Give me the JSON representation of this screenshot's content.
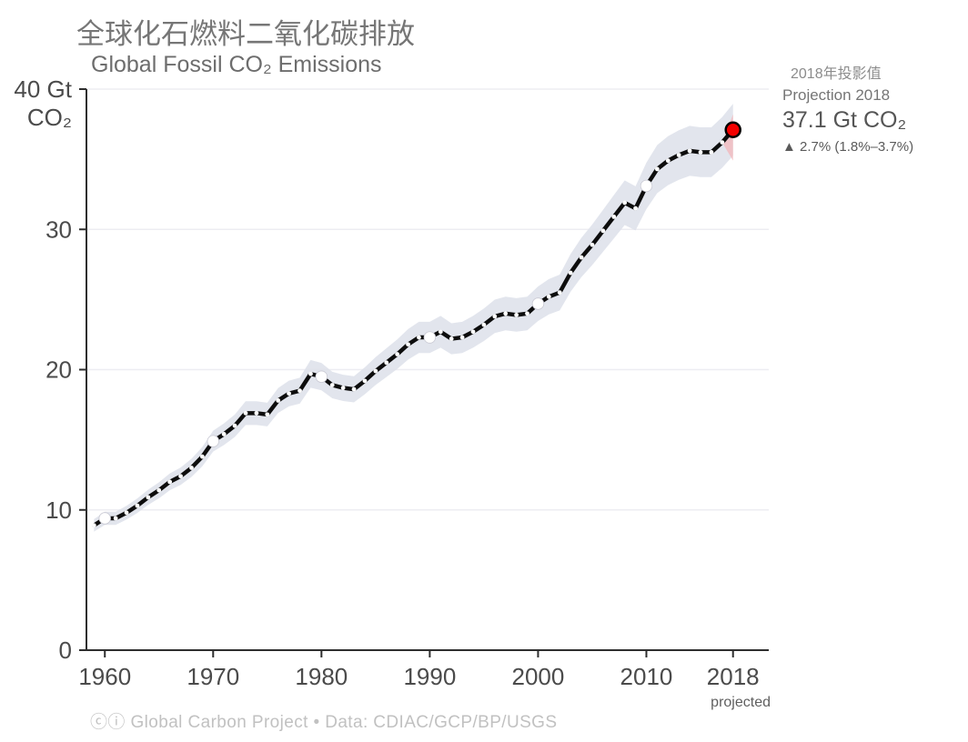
{
  "header": {
    "title_zh": "全球化石燃料二氧化碳排放",
    "title_en": "Global Fossil CO₂ Emissions"
  },
  "annotation": {
    "label_zh": "2018年投影值",
    "label_en": "Projection 2018",
    "value": "37.1 Gt CO₂",
    "growth": "▲ 2.7% (1.8%–3.7%)"
  },
  "footer": {
    "credit": "ⓒⓘ Global Carbon Project  •  Data: CDIAC/GCP/BP/USGS"
  },
  "chart_data": {
    "type": "line",
    "title": "Global Fossil CO₂ Emissions",
    "ylabel": "Gt CO₂",
    "ylabel_second_line": "CO₂",
    "ylim": [
      0,
      40
    ],
    "yticks": [
      0,
      10,
      20,
      30,
      40
    ],
    "ytick_labels": [
      "0",
      "10",
      "20",
      "30",
      "40 Gt"
    ],
    "xticks": [
      1960,
      1970,
      1980,
      1990,
      2000,
      2010,
      2018
    ],
    "xtick_note": "projected",
    "grid": "horizontal",
    "legend_position": "none",
    "years": [
      1959,
      1960,
      1961,
      1962,
      1963,
      1964,
      1965,
      1966,
      1967,
      1968,
      1969,
      1970,
      1971,
      1972,
      1973,
      1974,
      1975,
      1976,
      1977,
      1978,
      1979,
      1980,
      1981,
      1982,
      1983,
      1984,
      1985,
      1986,
      1987,
      1988,
      1989,
      1990,
      1991,
      1992,
      1993,
      1994,
      1995,
      1996,
      1997,
      1998,
      1999,
      2000,
      2001,
      2002,
      2003,
      2004,
      2005,
      2006,
      2007,
      2008,
      2009,
      2010,
      2011,
      2012,
      2013,
      2014,
      2015,
      2016,
      2017,
      2018
    ],
    "values": [
      8.9,
      9.4,
      9.4,
      9.8,
      10.3,
      10.9,
      11.4,
      12.0,
      12.4,
      13.0,
      13.8,
      14.9,
      15.4,
      16.0,
      16.9,
      16.9,
      16.8,
      17.8,
      18.3,
      18.5,
      19.7,
      19.5,
      18.9,
      18.7,
      18.6,
      19.2,
      19.9,
      20.5,
      21.1,
      21.8,
      22.3,
      22.3,
      22.7,
      22.2,
      22.3,
      22.7,
      23.2,
      23.8,
      24.0,
      23.9,
      24.0,
      24.7,
      25.2,
      25.5,
      26.9,
      28.0,
      28.9,
      29.9,
      30.9,
      31.9,
      31.5,
      33.1,
      34.3,
      34.9,
      35.3,
      35.6,
      35.5,
      35.5,
      36.2,
      37.1
    ],
    "uncertainty_fraction": 0.05,
    "decade_marker_years": [
      1960,
      1970,
      1980,
      1990,
      2000,
      2010
    ],
    "projection": {
      "year": 2018,
      "value": 37.1,
      "growth_pct": 2.7,
      "range_pct": [
        1.8,
        3.7
      ],
      "band_top": 38.2,
      "band_bottom": 34.9
    },
    "colors": {
      "line": "#0d0d0d",
      "band": "#dde0ea",
      "projection_band": "#f3b6ba",
      "dot_fill": "#ffffff",
      "decade_dot_edge": "#c9c9d3",
      "projection_dot": "#f40000",
      "projection_dot_edge": "#000000",
      "axis": "#2e2e2e",
      "tick_label": "#4b4b4b",
      "note_label": "#5f5f5f",
      "grid_line": "#ededf2"
    }
  }
}
